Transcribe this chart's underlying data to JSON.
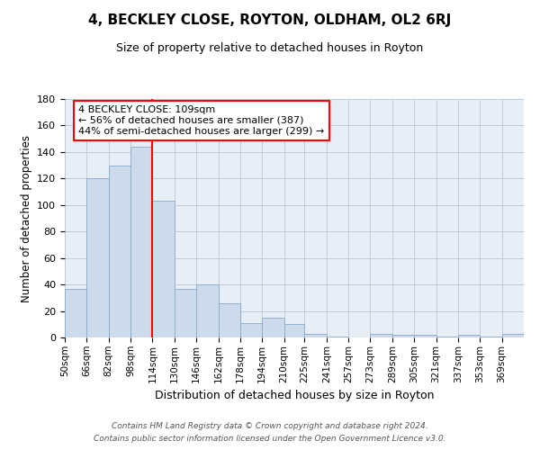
{
  "title": "4, BECKLEY CLOSE, ROYTON, OLDHAM, OL2 6RJ",
  "subtitle": "Size of property relative to detached houses in Royton",
  "xlabel": "Distribution of detached houses by size in Royton",
  "ylabel": "Number of detached properties",
  "bar_labels": [
    "50sqm",
    "66sqm",
    "82sqm",
    "98sqm",
    "114sqm",
    "130sqm",
    "146sqm",
    "162sqm",
    "178sqm",
    "194sqm",
    "210sqm",
    "225sqm",
    "241sqm",
    "257sqm",
    "273sqm",
    "289sqm",
    "305sqm",
    "321sqm",
    "337sqm",
    "353sqm",
    "369sqm"
  ],
  "bar_values": [
    37,
    120,
    130,
    144,
    103,
    37,
    40,
    26,
    11,
    15,
    10,
    3,
    1,
    0,
    3,
    2,
    2,
    1,
    2,
    1,
    3
  ],
  "bar_color": "#cddaeb",
  "bar_edge_color": "#88aacc",
  "bin_edges": [
    50,
    66,
    82,
    98,
    114,
    130,
    146,
    162,
    178,
    194,
    210,
    225,
    241,
    257,
    273,
    289,
    305,
    321,
    337,
    353,
    369,
    385
  ],
  "vline_x": 114,
  "vline_color": "red",
  "annotation_text": "4 BECKLEY CLOSE: 109sqm\n← 56% of detached houses are smaller (387)\n44% of semi-detached houses are larger (299) →",
  "ylim": [
    0,
    180
  ],
  "yticks": [
    0,
    20,
    40,
    60,
    80,
    100,
    120,
    140,
    160,
    180
  ],
  "grid_color": "#c0ccd8",
  "bg_color": "#e8eef5",
  "footer_line1": "Contains HM Land Registry data © Crown copyright and database right 2024.",
  "footer_line2": "Contains public sector information licensed under the Open Government Licence v3.0."
}
